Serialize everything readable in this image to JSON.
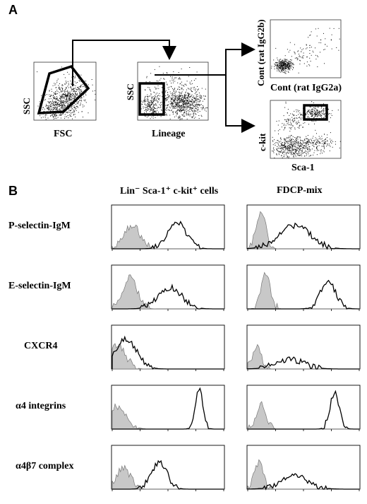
{
  "panel_a": {
    "letter": "A",
    "plot_fsc_ssc": {
      "xlabel": "FSC",
      "ylabel": "SSC"
    },
    "plot_lineage_ssc": {
      "xlabel": "Lineage",
      "ylabel": "SSC"
    },
    "plot_isotype": {
      "xlabel": "Cont (rat IgG2a)",
      "ylabel": "Cont (rat IgG2b)"
    },
    "plot_sca_kit": {
      "xlabel": "Sca-1",
      "ylabel": "c-kit"
    }
  },
  "panel_b": {
    "letter": "B",
    "col_left_header": "Lin⁻ Sca-1⁺ c-kit⁺ cells",
    "col_right_header": "FDCP-mix",
    "rows": [
      {
        "label": "P-selectin-IgM"
      },
      {
        "label": "E-selectin-IgM"
      },
      {
        "label": "CXCR4"
      },
      {
        "label": "α4 integrins"
      },
      {
        "label": "α4β7 complex"
      }
    ]
  }
}
